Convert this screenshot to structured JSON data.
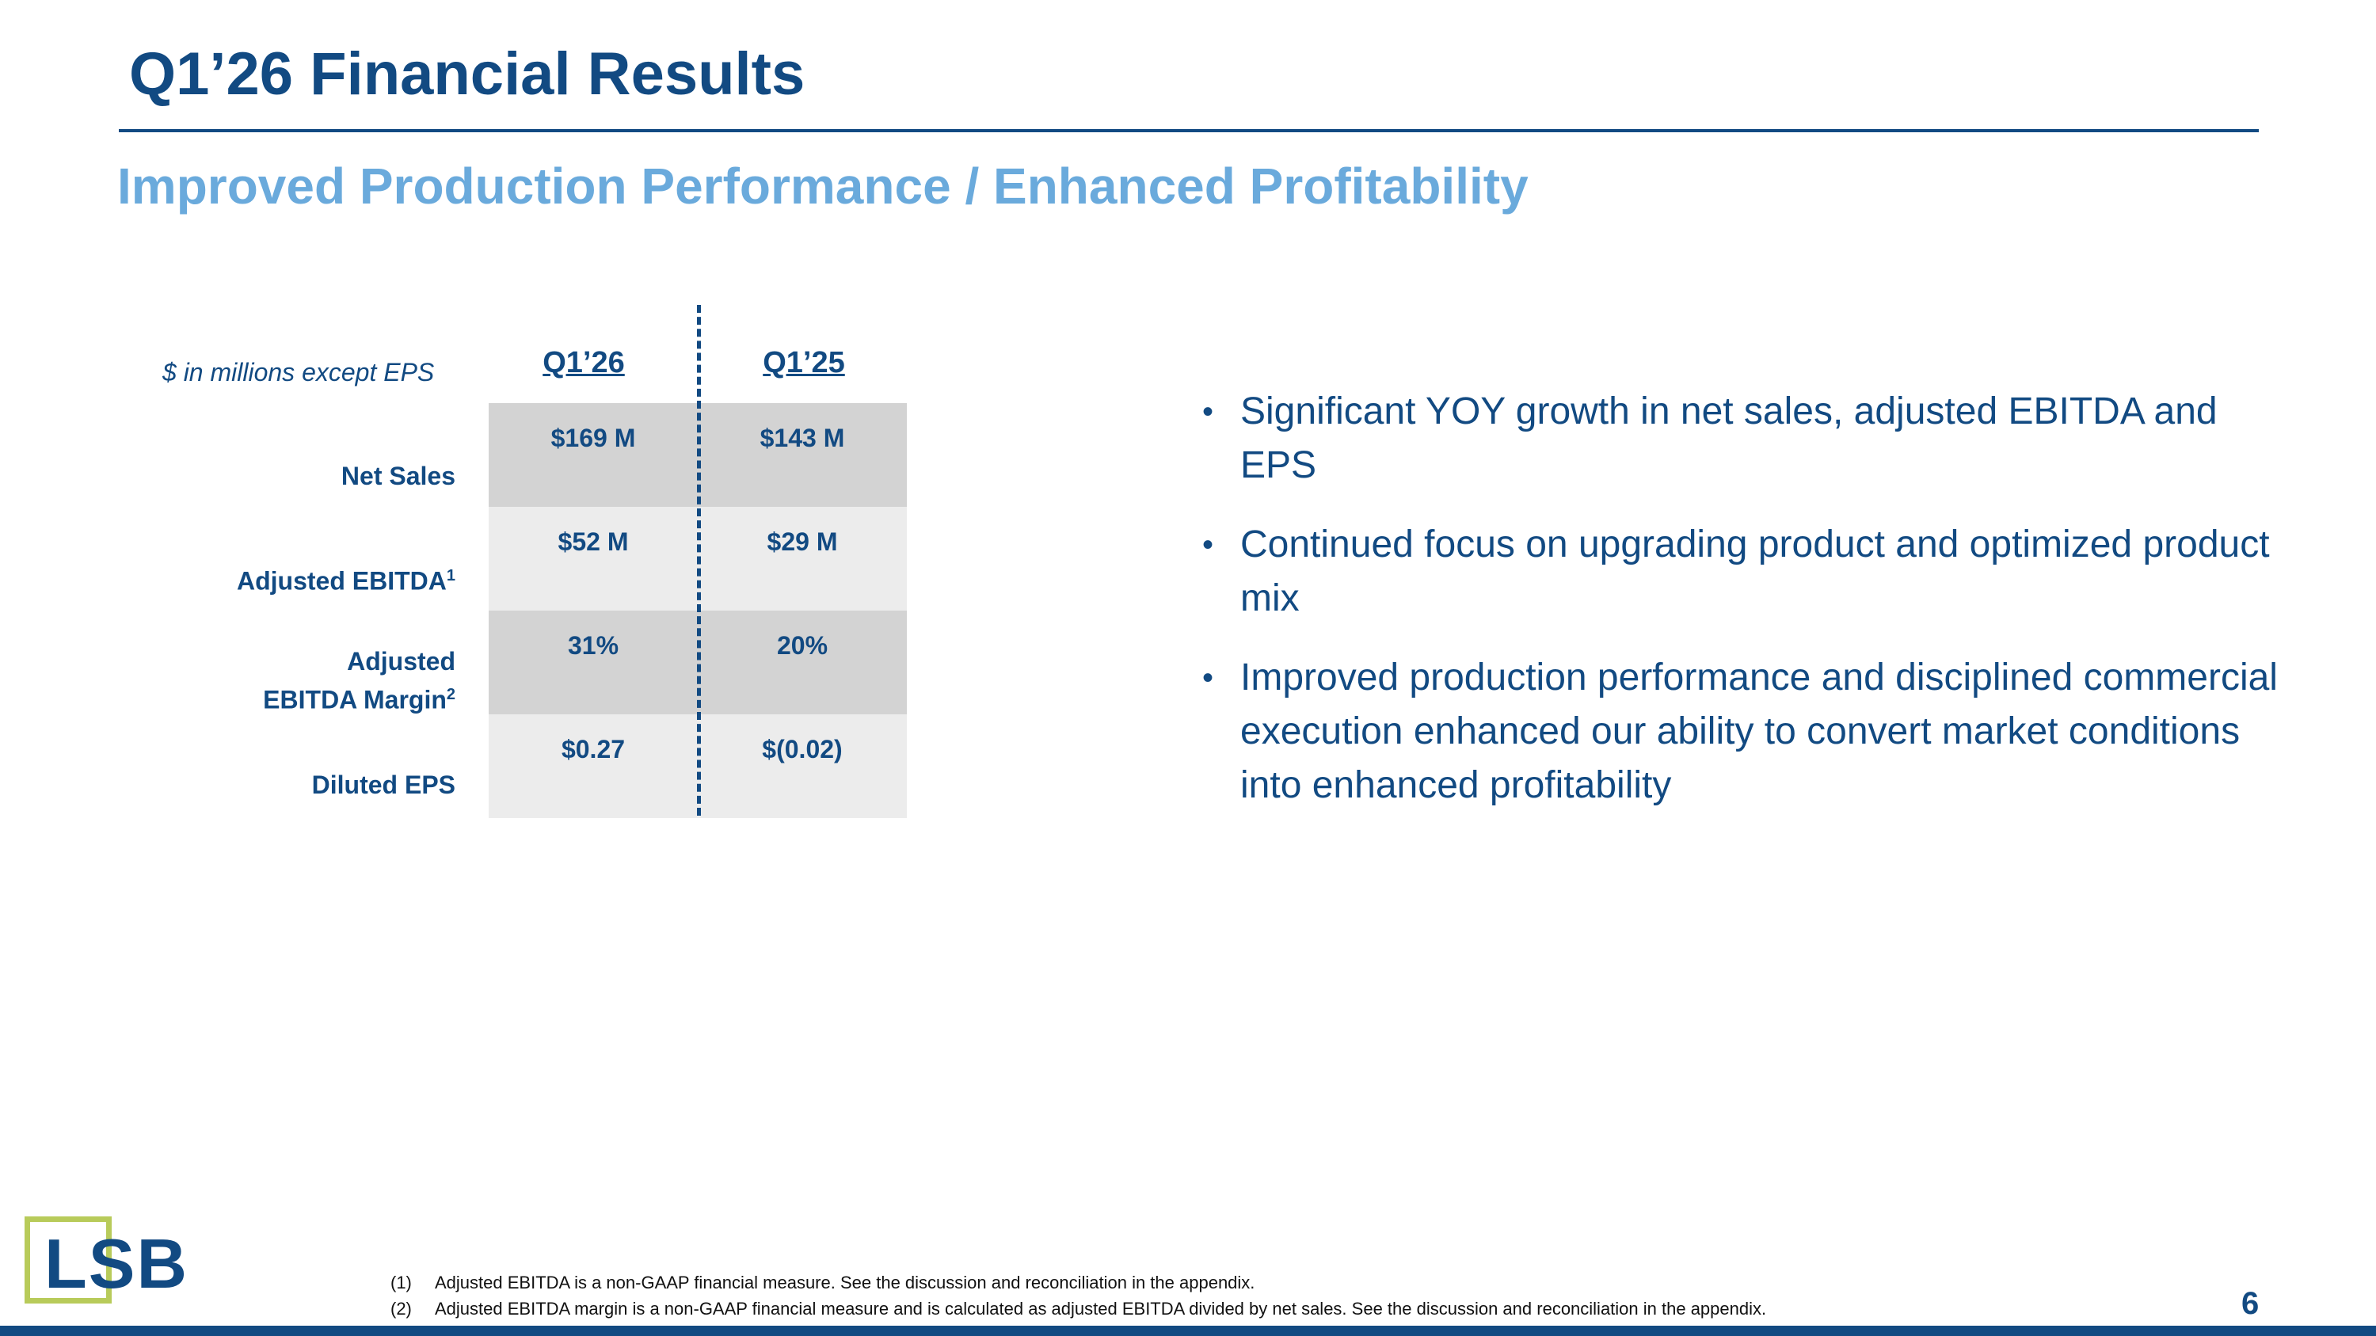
{
  "slide": {
    "title": "Q1’26 Financial Results",
    "subtitle": "Improved Production Performance / Enhanced Profitability",
    "page_number": "6"
  },
  "table": {
    "units_note": "$ in millions except EPS",
    "columns": [
      "Q1’26",
      "Q1’25"
    ],
    "rows": [
      {
        "label": "Net Sales",
        "sup": "",
        "values": [
          "$169 M",
          "$143 M"
        ]
      },
      {
        "label": "Adjusted EBITDA",
        "sup": "1",
        "values": [
          "$52 M",
          "$29 M"
        ]
      },
      {
        "label_line1": "Adjusted",
        "label_line2": "EBITDA Margin",
        "sup": "2",
        "values": [
          "31%",
          "20%"
        ]
      },
      {
        "label": "Diluted EPS",
        "sup": "",
        "values": [
          "$0.27",
          "$(0.02)"
        ]
      }
    ]
  },
  "bullets": [
    "Significant YOY growth in net sales, adjusted EBITDA and EPS",
    "Continued focus on upgrading product and optimized product mix",
    "Improved production performance and disciplined commercial execution enhanced our ability to convert market conditions into enhanced profitability"
  ],
  "logo": {
    "text": "LSB",
    "box_color": "#b8cb5a",
    "text_color": "#124a82"
  },
  "footnotes": [
    {
      "num": "(1)",
      "text": "Adjusted EBITDA is a non-GAAP financial measure.  See the discussion and reconciliation in the appendix."
    },
    {
      "num": "(2)",
      "text": "Adjusted EBITDA margin is a non-GAAP financial measure and is calculated as adjusted EBITDA divided by net sales. See the discussion and reconciliation in the appendix."
    }
  ],
  "colors": {
    "primary": "#124a82",
    "accent": "#6aaadc",
    "cell_dark": "#d3d3d3",
    "cell_light": "#ececec"
  }
}
